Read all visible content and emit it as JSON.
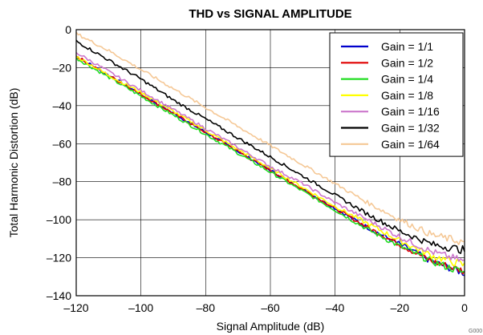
{
  "chart_data": {
    "type": "line",
    "title": "THD vs SIGNAL AMPLITUDE",
    "xlabel": "Signal Amplitude (dB)",
    "ylabel": "Total Harmonic Distortion (dB)",
    "xlim": [
      -120,
      0
    ],
    "ylim": [
      -140,
      0
    ],
    "x_ticks": [
      -120,
      -100,
      -80,
      -60,
      -40,
      -20,
      0
    ],
    "y_ticks": [
      0,
      -20,
      -40,
      -60,
      -80,
      -100,
      -120,
      -140
    ],
    "x_tick_labels": [
      "–120",
      "–100",
      "–80",
      "–60",
      "–40",
      "–20",
      "0"
    ],
    "y_tick_labels": [
      "0",
      "–20",
      "–40",
      "–60",
      "–80",
      "–100",
      "–120",
      "–140"
    ],
    "grid": true,
    "legend_position": "top-right",
    "figure_code": "G000",
    "x": [
      -120,
      -110,
      -100,
      -90,
      -80,
      -70,
      -60,
      -50,
      -40,
      -30,
      -20,
      -10,
      0
    ],
    "series": [
      {
        "name": "Gain = 1/1",
        "color": "#0000cc",
        "values": [
          -14,
          -24,
          -34,
          -44,
          -54,
          -64,
          -74,
          -84,
          -94,
          -104,
          -113,
          -122,
          -128
        ]
      },
      {
        "name": "Gain = 1/2",
        "color": "#e00000",
        "values": [
          -14,
          -24,
          -34,
          -44,
          -54,
          -64,
          -74,
          -84,
          -94,
          -104,
          -113,
          -122,
          -127
        ]
      },
      {
        "name": "Gain = 1/4",
        "color": "#22dd22",
        "values": [
          -15,
          -25,
          -35,
          -45,
          -55,
          -65,
          -75,
          -85,
          -95,
          -105,
          -114,
          -122,
          -128
        ]
      },
      {
        "name": "Gain = 1/8",
        "color": "#ffff00",
        "values": [
          -14,
          -24,
          -33,
          -43,
          -53,
          -63,
          -73,
          -83,
          -93,
          -102,
          -111,
          -119,
          -124
        ]
      },
      {
        "name": "Gain = 1/16",
        "color": "#cc77cc",
        "values": [
          -12,
          -22,
          -32,
          -42,
          -52,
          -62,
          -72,
          -81,
          -91,
          -100,
          -109,
          -117,
          -122
        ]
      },
      {
        "name": "Gain = 1/32",
        "color": "#000000",
        "values": [
          -6,
          -16,
          -26,
          -37,
          -47,
          -57,
          -67,
          -77,
          -87,
          -97,
          -106,
          -113,
          -116
        ]
      },
      {
        "name": "Gain = 1/64",
        "color": "#f5c896",
        "values": [
          -2,
          -11,
          -21,
          -31,
          -41,
          -51,
          -61,
          -71,
          -81,
          -91,
          -100,
          -108,
          -112
        ]
      }
    ]
  }
}
